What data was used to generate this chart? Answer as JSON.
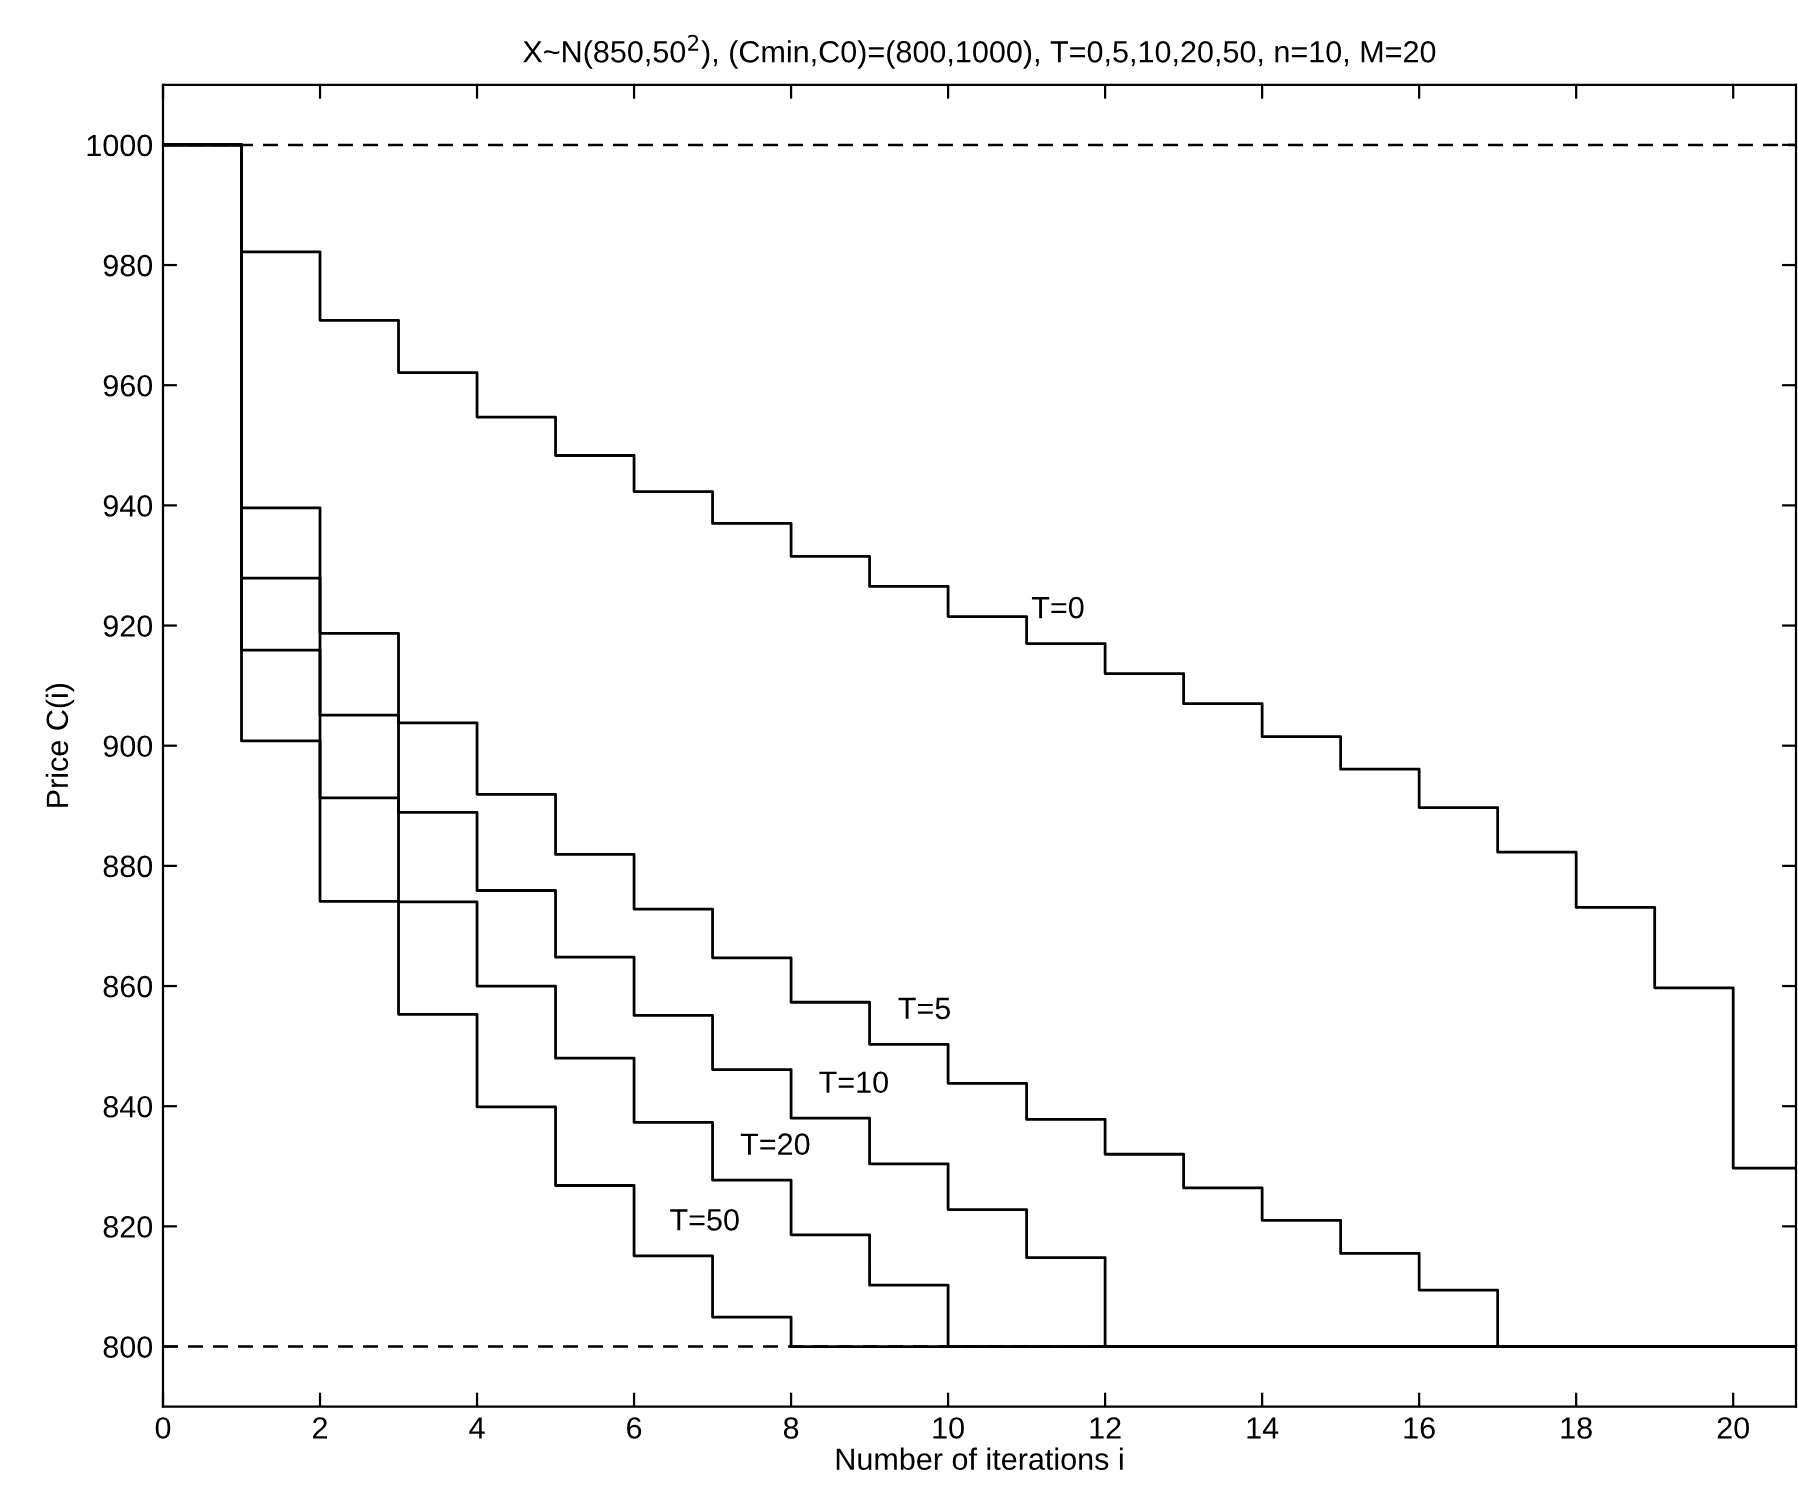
{
  "chart_data": {
    "type": "step",
    "title": "X~N(850,50$^{2}$), (Cmin,C0)=(800,1000), T=0,5,10,20,50, n=10, M=20",
    "xlabel": "Number of iterations i",
    "ylabel": "Price C(i)",
    "x": [
      0,
      1,
      2,
      3,
      4,
      5,
      6,
      7,
      8,
      9,
      10,
      11,
      12,
      13,
      14,
      15,
      16,
      17,
      18,
      19,
      20,
      20.8
    ],
    "series": [
      {
        "color": "#000000",
        "values": [
          1000,
          982.2,
          970.8,
          962.1,
          954.7,
          948.3,
          942.3,
          937,
          931.5,
          926.5,
          921.5,
          917,
          912,
          907,
          901.5,
          896.1,
          889.7,
          882.3,
          873.1,
          859.7,
          829.7,
          829.7
        ]
      },
      {
        "color": "#000000",
        "values": [
          1000,
          939.6,
          918.7,
          903.8,
          891.9,
          881.9,
          872.8,
          864.7,
          857.3,
          850.3,
          843.8,
          837.8,
          832.0,
          826.4,
          821.0,
          815.5,
          809.4,
          800,
          800,
          800,
          800,
          800
        ]
      },
      {
        "color": "#000000",
        "values": [
          1000,
          927.9,
          905.1,
          888.9,
          875.9,
          864.8,
          855.1,
          846.1,
          838.0,
          830.4,
          822.8,
          814.8,
          800,
          800,
          800,
          800,
          800,
          800,
          800,
          800,
          800,
          800
        ]
      },
      {
        "color": "#000000",
        "values": [
          1000,
          915.9,
          891.3,
          874.0,
          860.0,
          848.0,
          837.3,
          827.7,
          818.6,
          810.2,
          800,
          800,
          800,
          800,
          800,
          800,
          800,
          800,
          800,
          800,
          800,
          800
        ]
      },
      {
        "color": "#000000",
        "values": [
          1000,
          900.8,
          874.1,
          855.3,
          839.9,
          826.8,
          815.1,
          804.9,
          800,
          800,
          800,
          800,
          800,
          800,
          800,
          800,
          800,
          800,
          800,
          800,
          800,
          800
        ]
      }
    ],
    "annotations": [
      {
        "text": "T=0",
        "x": 11.4,
        "y": 917
      },
      {
        "text": "T=5",
        "x": 9.7,
        "y": 850.3
      },
      {
        "text": "T=10",
        "x": 8.8,
        "y": 838.0
      },
      {
        "text": "T=20",
        "x": 7.8,
        "y": 827.7
      },
      {
        "text": "T=50",
        "x": 6.9,
        "y": 815.1
      }
    ],
    "ref_lines": [
      {
        "axis": "y",
        "value": 1000,
        "line_style": "dashed",
        "color": "#000000"
      },
      {
        "axis": "y",
        "value": 800,
        "line_style": "dashed",
        "color": "#000000"
      }
    ],
    "xlim": [
      0,
      20.8
    ],
    "ylim": [
      790,
      1010
    ],
    "xticks": [
      0,
      2,
      4,
      6,
      8,
      10,
      12,
      14,
      16,
      18,
      20
    ],
    "yticks": [
      800,
      820,
      840,
      860,
      880,
      900,
      920,
      940,
      960,
      980,
      1000
    ],
    "grid": false,
    "marker": "none",
    "line_style": "solid"
  }
}
